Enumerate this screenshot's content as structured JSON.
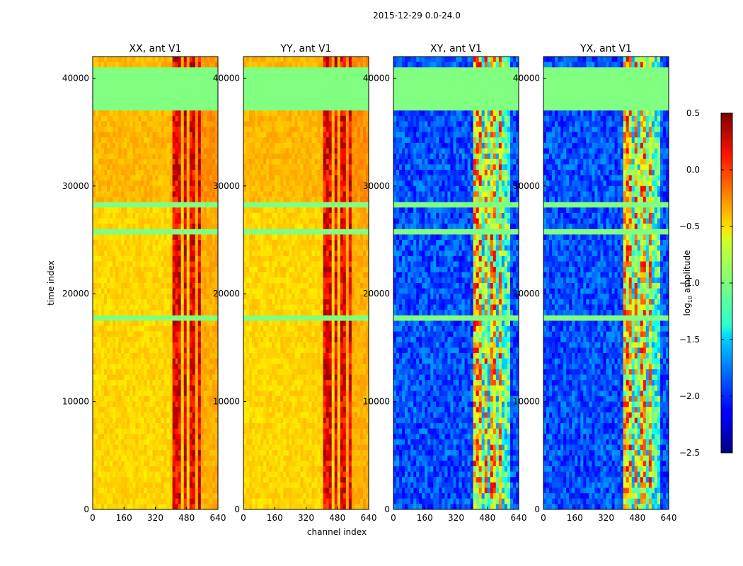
{
  "chart_data": {
    "type": "heatmap",
    "suptitle": "2015-12-29 0.0-24.0",
    "xlabel": "channel index",
    "ylabel": "time index",
    "xlim": [
      0,
      640
    ],
    "ylim": [
      0,
      42000
    ],
    "xticks": [
      0,
      160,
      320,
      480,
      640
    ],
    "yticks": [
      0,
      10000,
      20000,
      30000,
      40000
    ],
    "panels": [
      {
        "title": "XX, ant V1",
        "kind": "auto"
      },
      {
        "title": "YY, ant V1",
        "kind": "auto"
      },
      {
        "title": "XY, ant V1",
        "kind": "cross"
      },
      {
        "title": "YX, ant V1",
        "kind": "cross"
      }
    ],
    "colorbar": {
      "label_prefix": "log",
      "label_sub": "10",
      "label_suffix": " amplitude",
      "min": -2.5,
      "max": 0.5,
      "ticks": [
        0.5,
        0.0,
        -0.5,
        -1.0,
        -1.5,
        -2.0,
        -2.5
      ],
      "tick_labels": [
        "0.5",
        "0.0",
        "−0.5",
        "−1.0",
        "−1.5",
        "−2.0",
        "−2.5"
      ],
      "colormap": "jet"
    },
    "flagged_value": -1.0,
    "flagged_time_ranges": [
      [
        37000,
        41000
      ],
      [
        25500,
        26000
      ],
      [
        17300,
        18200
      ],
      [
        28100,
        28300
      ]
    ],
    "rfi_channel_ranges": [
      [
        410,
        450
      ],
      [
        460,
        480
      ],
      [
        500,
        520
      ],
      [
        540,
        560
      ]
    ]
  }
}
